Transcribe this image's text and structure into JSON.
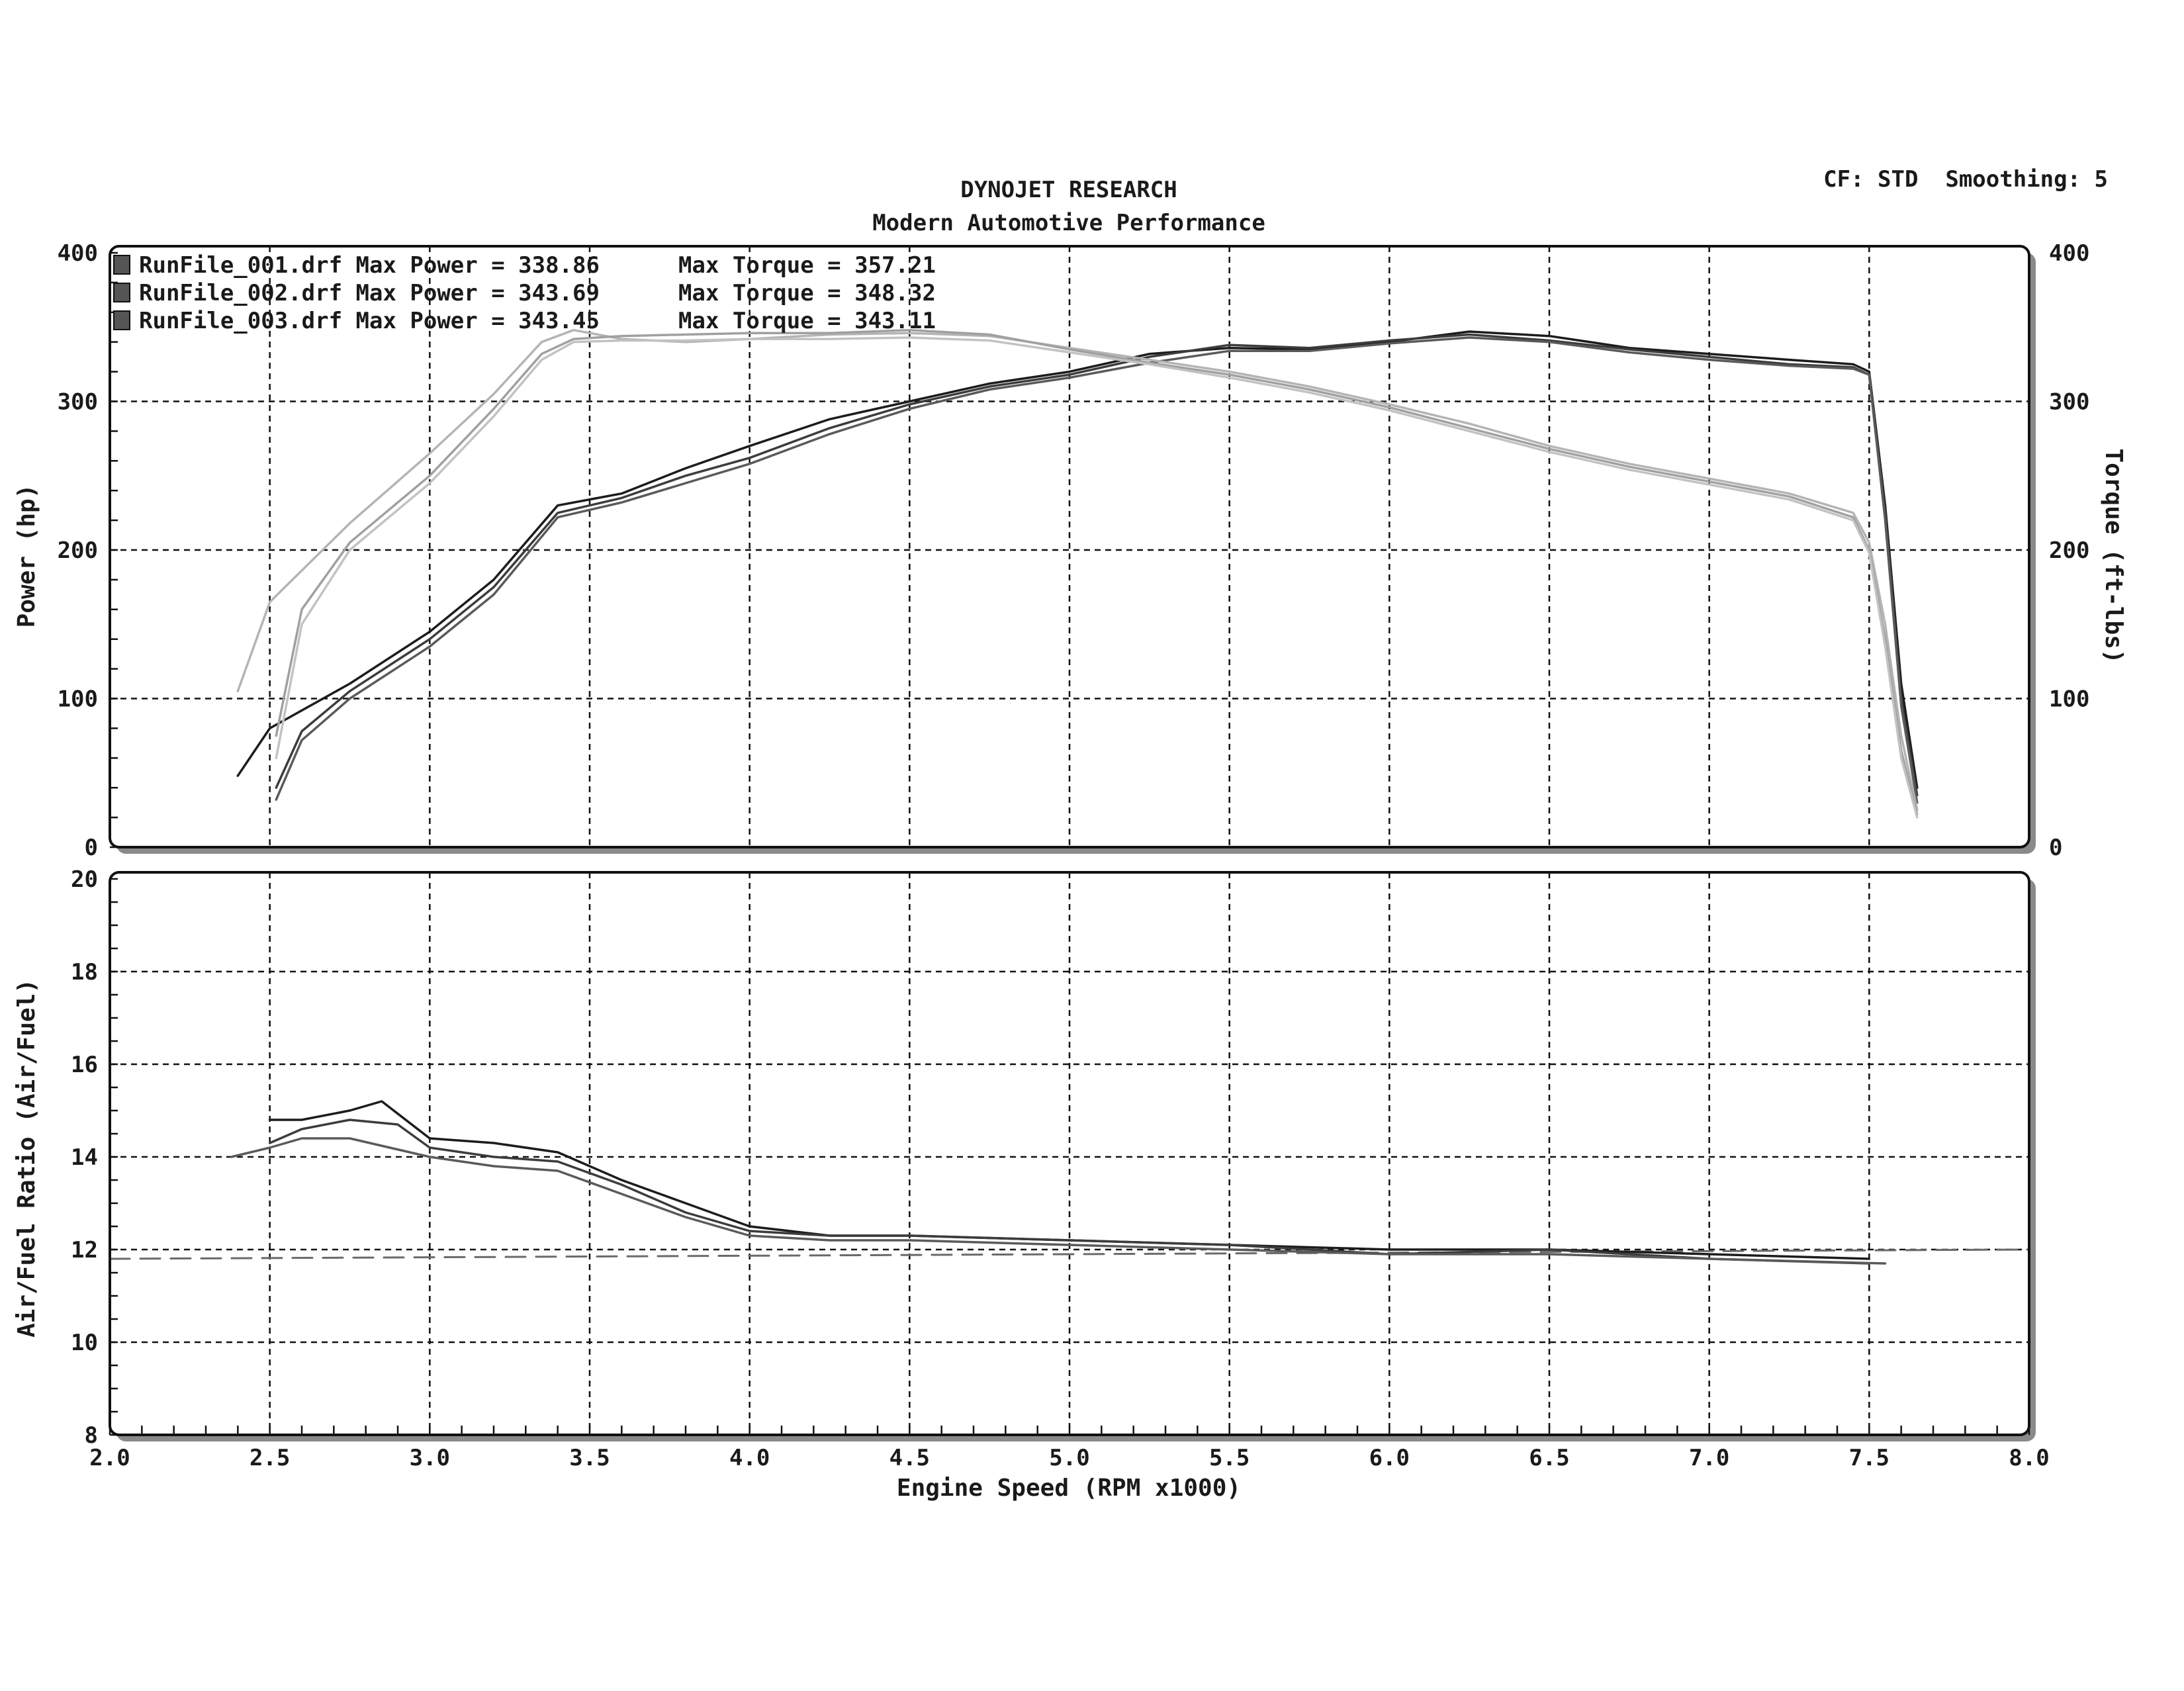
{
  "header": {
    "title": "DYNOJET RESEARCH",
    "subtitle": "Modern Automotive Performance",
    "settings": "CF: STD  Smoothing: 5"
  },
  "legend": [
    {
      "label": "RunFile_001.drf Max Power = 338.86",
      "torque_label": "Max Torque = 357.21"
    },
    {
      "label": "RunFile_002.drf Max Power = 343.69",
      "torque_label": "Max Torque = 348.32"
    },
    {
      "label": "RunFile_003.drf Max Power = 343.45",
      "torque_label": "Max Torque = 343.11"
    }
  ],
  "colors": {
    "power": [
      "#1c1c1c",
      "#3c3c3c",
      "#5a5a5a"
    ],
    "torque": [
      "#b4b4b4",
      "#a0a0a0",
      "#c2c2c2"
    ],
    "afr": [
      "#1c1c1c",
      "#3c3c3c",
      "#5a5a5a"
    ],
    "target": "#6a6a6a",
    "legend_swatch": "#555555"
  },
  "chart_data": [
    {
      "type": "line",
      "title": "DYNOJET RESEARCH",
      "subtitle": "Modern Automotive Performance",
      "xlabel": "Engine Speed (RPM x1000)",
      "ylabel": "Power (hp)",
      "y2label": "Torque (ft-lbs)",
      "xlim": [
        2.0,
        8.0
      ],
      "ylim": [
        0,
        400
      ],
      "y2lim": [
        0,
        400
      ],
      "x_ticks": [
        "2.0",
        "2.5",
        "3.0",
        "3.5",
        "4.0",
        "4.5",
        "5.0",
        "5.5",
        "6.0",
        "6.5",
        "7.0",
        "7.5",
        "8.0"
      ],
      "y_ticks": [
        "0",
        "100",
        "200",
        "300",
        "400"
      ],
      "y2_ticks": [
        "0",
        "100",
        "200",
        "300",
        "400"
      ],
      "grid": true,
      "legend_position": "top-left",
      "series": [
        {
          "name": "RunFile_001.drf",
          "measure": "power",
          "axis": "left",
          "x": [
            2.4,
            2.5,
            2.75,
            3.0,
            3.2,
            3.4,
            3.6,
            3.8,
            4.0,
            4.25,
            4.5,
            4.75,
            5.0,
            5.25,
            5.5,
            5.75,
            6.0,
            6.25,
            6.5,
            6.75,
            7.0,
            7.25,
            7.45,
            7.5,
            7.55,
            7.6,
            7.65
          ],
          "y": [
            48,
            80,
            110,
            145,
            180,
            230,
            238,
            255,
            270,
            288,
            300,
            312,
            320,
            332,
            336,
            335,
            340,
            347,
            344,
            336,
            332,
            328,
            325,
            320,
            230,
            110,
            40
          ]
        },
        {
          "name": "RunFile_002.drf",
          "measure": "power",
          "axis": "left",
          "x": [
            2.52,
            2.6,
            2.75,
            3.0,
            3.2,
            3.4,
            3.6,
            3.8,
            4.0,
            4.25,
            4.5,
            4.75,
            5.0,
            5.25,
            5.5,
            5.75,
            6.0,
            6.25,
            6.5,
            6.75,
            7.0,
            7.25,
            7.45,
            7.5,
            7.55,
            7.6,
            7.65
          ],
          "y": [
            40,
            78,
            105,
            140,
            175,
            225,
            235,
            250,
            262,
            282,
            298,
            310,
            318,
            330,
            338,
            336,
            341,
            345,
            341,
            335,
            330,
            325,
            323,
            318,
            225,
            100,
            35
          ]
        },
        {
          "name": "RunFile_003.drf",
          "measure": "power",
          "axis": "left",
          "x": [
            2.52,
            2.6,
            2.75,
            3.0,
            3.2,
            3.4,
            3.6,
            3.8,
            4.0,
            4.25,
            4.5,
            4.75,
            5.0,
            5.25,
            5.5,
            5.75,
            6.0,
            6.25,
            6.5,
            6.75,
            7.0,
            7.25,
            7.45,
            7.5,
            7.55,
            7.6,
            7.65
          ],
          "y": [
            32,
            72,
            100,
            135,
            170,
            222,
            232,
            245,
            258,
            278,
            295,
            308,
            316,
            326,
            334,
            334,
            339,
            343,
            340,
            333,
            328,
            324,
            322,
            318,
            220,
            95,
            30
          ]
        },
        {
          "name": "RunFile_001.drf",
          "measure": "torque",
          "axis": "right",
          "x": [
            2.4,
            2.5,
            2.75,
            3.0,
            3.2,
            3.35,
            3.45,
            3.6,
            3.8,
            4.0,
            4.25,
            4.5,
            4.75,
            5.0,
            5.25,
            5.5,
            5.75,
            6.0,
            6.25,
            6.5,
            6.75,
            7.0,
            7.25,
            7.45,
            7.5,
            7.55,
            7.6,
            7.65
          ],
          "y": [
            105,
            165,
            218,
            265,
            305,
            340,
            348,
            342,
            340,
            342,
            345,
            346,
            344,
            336,
            328,
            320,
            310,
            298,
            285,
            270,
            258,
            248,
            238,
            225,
            205,
            150,
            75,
            25
          ]
        },
        {
          "name": "RunFile_002.drf",
          "measure": "torque",
          "axis": "right",
          "x": [
            2.52,
            2.6,
            2.75,
            3.0,
            3.2,
            3.35,
            3.45,
            3.6,
            3.8,
            4.0,
            4.25,
            4.5,
            4.75,
            5.0,
            5.25,
            5.5,
            5.75,
            6.0,
            6.25,
            6.5,
            6.75,
            7.0,
            7.25,
            7.45,
            7.5,
            7.55,
            7.6,
            7.65
          ],
          "y": [
            75,
            160,
            205,
            250,
            295,
            332,
            342,
            344,
            345,
            346,
            346,
            348,
            345,
            335,
            326,
            318,
            308,
            296,
            282,
            268,
            256,
            246,
            236,
            222,
            200,
            140,
            65,
            22
          ]
        },
        {
          "name": "RunFile_003.drf",
          "measure": "torque",
          "axis": "right",
          "x": [
            2.52,
            2.6,
            2.75,
            3.0,
            3.2,
            3.35,
            3.45,
            3.6,
            3.8,
            4.0,
            4.25,
            4.5,
            4.75,
            5.0,
            5.25,
            5.5,
            5.75,
            6.0,
            6.25,
            6.5,
            6.75,
            7.0,
            7.25,
            7.45,
            7.5,
            7.55,
            7.6,
            7.65
          ],
          "y": [
            60,
            150,
            200,
            245,
            290,
            328,
            340,
            341,
            341,
            342,
            342,
            343,
            341,
            333,
            325,
            316,
            306,
            294,
            280,
            266,
            254,
            244,
            234,
            220,
            198,
            135,
            60,
            20
          ]
        }
      ]
    },
    {
      "type": "line",
      "xlabel": "Engine Speed (RPM x1000)",
      "ylabel": "Air/Fuel Ratio (Air/Fuel)",
      "xlim": [
        2.0,
        8.0
      ],
      "ylim": [
        8,
        20
      ],
      "x_ticks": [
        "2.0",
        "2.5",
        "3.0",
        "3.5",
        "4.0",
        "4.5",
        "5.0",
        "5.5",
        "6.0",
        "6.5",
        "7.0",
        "7.5",
        "8.0"
      ],
      "y_ticks": [
        "8",
        "10",
        "12",
        "14",
        "16",
        "18",
        "20"
      ],
      "grid": true,
      "series": [
        {
          "name": "RunFile_001.drf",
          "measure": "afr",
          "x": [
            2.5,
            2.6,
            2.75,
            2.85,
            3.0,
            3.2,
            3.4,
            3.6,
            3.8,
            4.0,
            4.25,
            4.5,
            5.0,
            5.5,
            6.0,
            6.5,
            7.0,
            7.5
          ],
          "y": [
            14.8,
            14.8,
            15.0,
            15.2,
            14.4,
            14.3,
            14.1,
            13.5,
            13.0,
            12.5,
            12.3,
            12.3,
            12.2,
            12.1,
            12.0,
            12.0,
            11.9,
            11.8
          ]
        },
        {
          "name": "RunFile_002.drf",
          "measure": "afr",
          "x": [
            2.5,
            2.6,
            2.75,
            2.9,
            3.0,
            3.2,
            3.4,
            3.6,
            3.8,
            4.0,
            4.25,
            4.5,
            5.0,
            5.5,
            6.0,
            6.5,
            7.0,
            7.5
          ],
          "y": [
            14.3,
            14.6,
            14.8,
            14.7,
            14.2,
            14.0,
            13.9,
            13.4,
            12.8,
            12.4,
            12.3,
            12.3,
            12.2,
            12.1,
            11.9,
            12.0,
            11.8,
            11.7
          ]
        },
        {
          "name": "RunFile_003.drf",
          "measure": "afr",
          "x": [
            2.38,
            2.5,
            2.6,
            2.75,
            3.0,
            3.2,
            3.4,
            3.6,
            3.8,
            4.0,
            4.25,
            4.5,
            5.0,
            5.5,
            6.0,
            6.5,
            7.0,
            7.55
          ],
          "y": [
            14.0,
            14.2,
            14.4,
            14.4,
            14.0,
            13.8,
            13.7,
            13.2,
            12.7,
            12.3,
            12.2,
            12.2,
            12.1,
            12.0,
            11.9,
            11.9,
            11.8,
            11.7
          ]
        },
        {
          "measure": "target",
          "dashed": true,
          "x": [
            2.0,
            8.0
          ],
          "y": [
            11.8,
            12.0
          ]
        }
      ]
    }
  ]
}
